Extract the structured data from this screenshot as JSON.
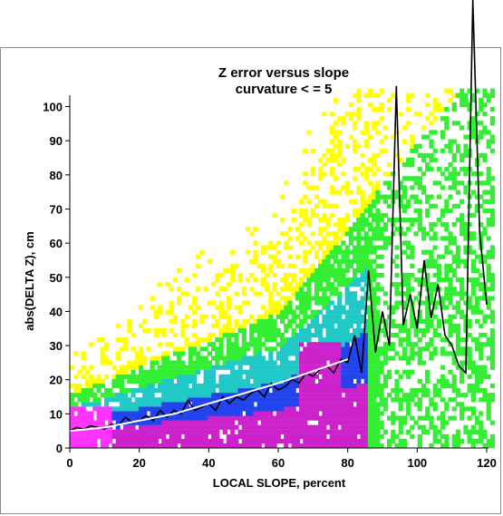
{
  "chart_data": {
    "type": "scatter",
    "title_line1": "Z error versus slope",
    "title_line2": "curvature < = 5",
    "xlabel": "LOCAL SLOPE, percent",
    "ylabel": "abs(DELTA Z), cm",
    "xlim": [
      0,
      120
    ],
    "ylim": [
      0,
      105
    ],
    "x_ticks": [
      0,
      20,
      40,
      60,
      80,
      100,
      120
    ],
    "y_ticks": [
      0,
      10,
      20,
      30,
      40,
      50,
      60,
      70,
      80,
      90,
      100
    ],
    "density_colors": [
      "#ffff00",
      "#33ee33",
      "#20c8c8",
      "#2244ee",
      "#cc22cc",
      "#ff33ff"
    ],
    "series": [
      {
        "kind": "mean-line",
        "color": "#000000",
        "x": [
          0,
          2,
          4,
          6,
          8,
          10,
          12,
          14,
          16,
          18,
          20,
          22,
          24,
          26,
          28,
          30,
          32,
          34,
          36,
          38,
          40,
          42,
          44,
          46,
          48,
          50,
          52,
          54,
          56,
          58,
          60,
          62,
          64,
          66,
          68,
          70,
          72,
          74,
          76,
          78,
          80,
          82,
          84,
          86,
          88,
          90,
          92,
          94,
          96,
          98,
          100,
          102,
          104,
          106,
          108,
          110,
          112,
          114,
          116,
          118,
          120
        ],
        "y": [
          5,
          6,
          5.5,
          6.5,
          6,
          5.5,
          7,
          6.5,
          9,
          7.5,
          8,
          9.5,
          8,
          11,
          9,
          11,
          10,
          14,
          11,
          12,
          13,
          11,
          15,
          13,
          15,
          14,
          16,
          17,
          15,
          19,
          17,
          18,
          20,
          19,
          22,
          21,
          23,
          24,
          22,
          26,
          25,
          33,
          22,
          52,
          28,
          40,
          30,
          106,
          36,
          45,
          35,
          55,
          38,
          48,
          33,
          30,
          24,
          22,
          160,
          63,
          42
        ]
      },
      {
        "kind": "fit-curve",
        "color": "#ffffff",
        "x": [
          0,
          10,
          20,
          30,
          40,
          50,
          60,
          70,
          80
        ],
        "y": [
          5,
          6,
          8,
          10,
          13,
          16,
          19,
          22.5,
          26
        ]
      }
    ]
  }
}
